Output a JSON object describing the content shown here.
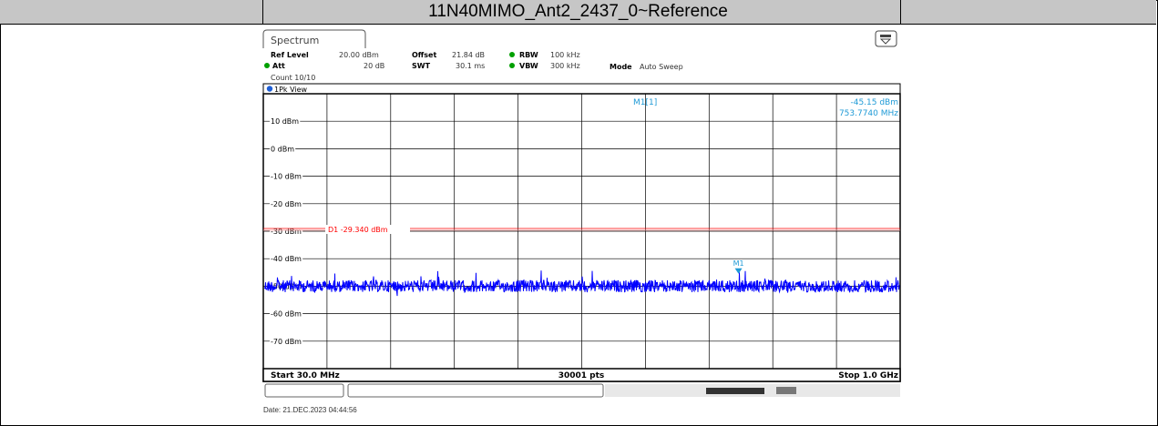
{
  "header": {
    "title": "11N40MIMO_Ant2_2437_0~Reference"
  },
  "instrument": {
    "tab_label": "Spectrum",
    "ref_level_label": "Ref Level",
    "ref_level_value": "20.00 dBm",
    "offset_label": "Offset",
    "offset_value": "21.84 dB",
    "rbw_label": "RBW",
    "rbw_value": "100 kHz",
    "att_label": "Att",
    "att_value": "20 dB",
    "swt_label": "SWT",
    "swt_value": "30.1 ms",
    "vbw_label": "VBW",
    "vbw_value": "300 kHz",
    "mode_label": "Mode",
    "mode_value": "Auto Sweep",
    "count_text": "Count 10/10",
    "trace_label": "1Pk View",
    "marker_label": "M1[1]",
    "marker_level": "-45.15 dBm",
    "marker_freq": "753.7740 MHz",
    "start_label": "Start 30.0 MHz",
    "points_label": "30001 pts",
    "stop_label": "Stop 1.0 GHz",
    "date_text": "Date: 21.DEC.2023  04:44:56"
  },
  "chart_data": {
    "type": "line",
    "title": "",
    "xlabel": "",
    "ylabel": "",
    "x_range_mhz": [
      30.0,
      1000.0
    ],
    "ylim": [
      -80,
      20
    ],
    "ytick_labels": [
      "10 dBm",
      "0 dBm",
      "-10 dBm",
      "-20 dBm",
      "-30 dBm",
      "-40 dBm",
      "-50 dBm",
      "-60 dBm",
      "-70 dBm"
    ],
    "ytick_values": [
      10,
      0,
      -10,
      -20,
      -30,
      -40,
      -50,
      -60,
      -70
    ],
    "grid": true,
    "x_divisions": 10,
    "series": [
      {
        "noise_floor_dbm": -50,
        "noise_spread_db": 4,
        "color": "#0000ff"
      }
    ],
    "threshold_line": {
      "label": "D1",
      "value_text": "-29.340 dBm",
      "value": -29.34,
      "color": "#ff0000"
    },
    "marker": {
      "name": "M1",
      "freq_mhz": 753.774,
      "level_dbm": -45.15,
      "color": "#1f9ad6"
    }
  },
  "colors": {
    "title_bar": "#c6c6c6",
    "trace": "#0000ff",
    "limit": "#ff0000",
    "marker": "#1f9ad6",
    "accent": "#00a000"
  }
}
